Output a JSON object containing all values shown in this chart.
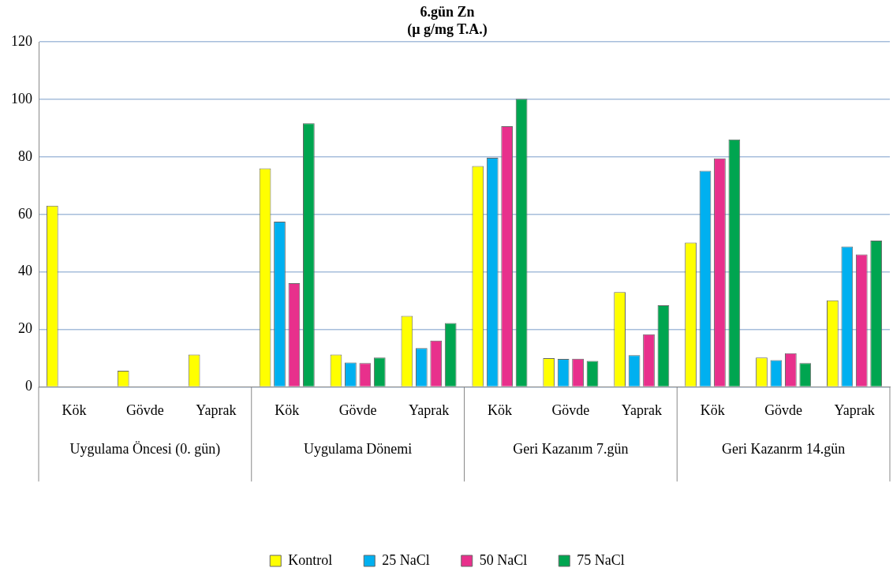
{
  "chart_data": {
    "type": "bar",
    "title": "6.gün Zn",
    "subtitle": "(µ g/mg T.A.)",
    "categories": [
      "Kök",
      "Gövde",
      "Yaprak",
      "Kök",
      "Gövde",
      "Yaprak",
      "Kök",
      "Gövde",
      "Yaprak",
      "Kök",
      "Gövde",
      "Yaprak"
    ],
    "annotations": [
      "Uygulama Öncesi (0. gün)",
      "Uygulama Dönemi",
      "Geri Kazanım 7.gün",
      "Geri Kazanrm 14.gün"
    ],
    "series": [
      {
        "name": "Kontrol",
        "color": "#ffff00",
        "values": [
          63,
          5.6,
          11.2,
          76,
          11.2,
          24.7,
          76.8,
          10,
          33,
          50.2,
          10.2,
          30.1
        ]
      },
      {
        "name": "25 NaCl",
        "color": "#00b0f0",
        "values": [
          null,
          null,
          null,
          57.5,
          8.5,
          13.5,
          79.7,
          9.7,
          11,
          75.2,
          9.3,
          48.8
        ]
      },
      {
        "name": "50 NaCl",
        "color": "#e8308c",
        "values": [
          null,
          null,
          null,
          36.1,
          8.3,
          16.1,
          90.7,
          9.8,
          18.3,
          79.5,
          11.7,
          46.1
        ]
      },
      {
        "name": "75 NaCl",
        "color": "#00a550",
        "values": [
          null,
          null,
          null,
          91.7,
          10.2,
          22.2,
          100.2,
          9,
          28.4,
          86.1,
          8.3,
          50.9
        ]
      }
    ],
    "ylim": [
      0,
      120
    ],
    "yticks": [
      0,
      20,
      40,
      60,
      80,
      100,
      120
    ],
    "grid": "y",
    "legend": "bottom"
  }
}
